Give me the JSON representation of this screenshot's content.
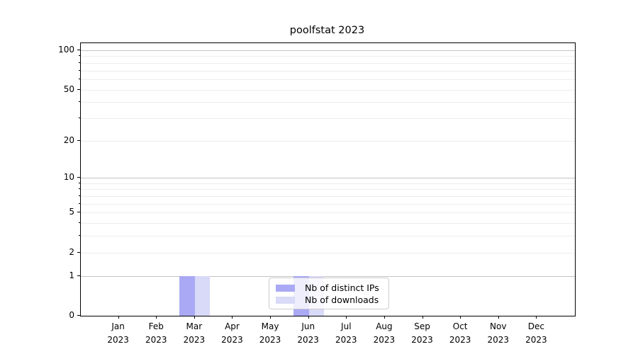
{
  "title": "poolfstat 2023",
  "chart_data": {
    "type": "bar",
    "title": "poolfstat 2023",
    "categories": [
      "Jan 2023",
      "Feb 2023",
      "Mar 2023",
      "Apr 2023",
      "May 2023",
      "Jun 2023",
      "Jul 2023",
      "Aug 2023",
      "Sep 2023",
      "Oct 2023",
      "Nov 2023",
      "Dec 2023"
    ],
    "x_months": [
      "Jan",
      "Feb",
      "Mar",
      "Apr",
      "May",
      "Jun",
      "Jul",
      "Aug",
      "Sep",
      "Oct",
      "Nov",
      "Dec"
    ],
    "x_year": "2023",
    "series": [
      {
        "name": "Nb of distinct IPs",
        "color": "#a9a9f5",
        "values": [
          0,
          0,
          1,
          0,
          0,
          1,
          0,
          0,
          0,
          0,
          0,
          0
        ]
      },
      {
        "name": "Nb of downloads",
        "color": "#d9d9f8",
        "values": [
          0,
          0,
          1,
          0,
          0,
          1,
          0,
          0,
          0,
          0,
          0,
          0
        ]
      }
    ],
    "xlabel": "",
    "ylabel": "",
    "ylim": [
      0,
      120
    ],
    "yscale": "log-like (symlog/log1p: 0 at baseline, logarithmic spacing 1-100)",
    "yticks_labeled": [
      0,
      1,
      2,
      5,
      10,
      20,
      50,
      100
    ],
    "yticks_decade": [
      1,
      10,
      100
    ],
    "yticks_minor": [
      3,
      4,
      6,
      7,
      8,
      9,
      30,
      40,
      60,
      70,
      80,
      90
    ],
    "grid": "horizontal gridlines, major (decades) darker, minor faint",
    "legend_position": "inside axes, lower center"
  },
  "legend": {
    "items": [
      {
        "label": "Nb of distinct IPs",
        "color": "#a9a9f5"
      },
      {
        "label": "Nb of downloads",
        "color": "#d9d9f8"
      }
    ]
  },
  "colors": {
    "background": "#ffffff",
    "bar_distinct_ips": "#a9a9f5",
    "bar_downloads": "#d9d9f8",
    "grid_decade": "#c3c3c3",
    "grid_minor": "#ededed",
    "spine": "#000000",
    "legend_border": "#cccccc",
    "text": "#000000"
  }
}
